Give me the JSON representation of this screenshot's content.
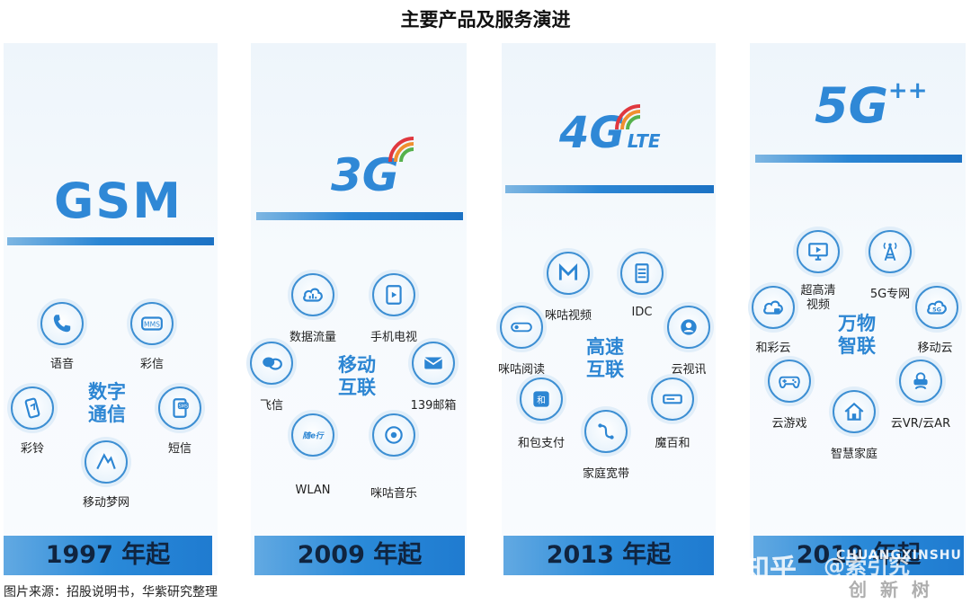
{
  "title": "主要产品及服务演进",
  "source_note": "图片来源：招股说明书，华紫研究整理",
  "watermark": {
    "brand": "知乎",
    "author": "@索引究",
    "mark_line1": "CHUANGXINSHU",
    "mark_line2": "创 新 树"
  },
  "colors": {
    "accent": "#2d86d3",
    "bar": "#1f7bd0",
    "panel": "#eef5fb"
  },
  "generations": [
    {
      "name": "GSM",
      "year": "1997 年起",
      "center_line1": "数字",
      "center_line2": "通信",
      "services": [
        {
          "label": "语音",
          "icon": "phone-icon"
        },
        {
          "label": "彩信",
          "icon": "mms-icon"
        },
        {
          "label": "彩铃",
          "icon": "ringtone-phone-icon"
        },
        {
          "label": "短信",
          "icon": "sms-icon"
        },
        {
          "label": "移动梦网",
          "icon": "monternet-icon"
        }
      ]
    },
    {
      "name": "3G",
      "year": "2009 年起",
      "center_line1": "移动",
      "center_line2": "互联",
      "services": [
        {
          "label": "数据流量",
          "icon": "cloud-data-icon"
        },
        {
          "label": "手机电视",
          "icon": "mobile-tv-icon"
        },
        {
          "label": "飞信",
          "icon": "fetion-icon"
        },
        {
          "label": "139邮箱",
          "icon": "mail-icon"
        },
        {
          "label": "WLAN",
          "icon": "wlan-icon"
        },
        {
          "label": "咪咕音乐",
          "icon": "music-icon"
        }
      ]
    },
    {
      "name": "4G",
      "suffix": "LTE",
      "year": "2013 年起",
      "center_line1": "高速",
      "center_line2": "互联",
      "services": [
        {
          "label": "咪咕视频",
          "icon": "migu-video-icon"
        },
        {
          "label": "IDC",
          "icon": "server-icon"
        },
        {
          "label": "咪咕阅读",
          "icon": "migu-read-icon"
        },
        {
          "label": "云视讯",
          "icon": "video-conference-icon"
        },
        {
          "label": "和包支付",
          "icon": "payment-icon"
        },
        {
          "label": "魔百和",
          "icon": "settop-box-icon"
        },
        {
          "label": "家庭宽带",
          "icon": "broadband-icon"
        }
      ]
    },
    {
      "name": "5G",
      "suffix": "++",
      "year": "2019 年起",
      "center_line1": "万物",
      "center_line2": "智联",
      "services": [
        {
          "label": "超高清\n视频",
          "icon": "uhd-video-icon"
        },
        {
          "label": "5G专网",
          "icon": "tower-icon"
        },
        {
          "label": "和彩云",
          "icon": "cloud-storage-icon"
        },
        {
          "label": "移动云",
          "icon": "mobile-cloud-icon"
        },
        {
          "label": "云游戏",
          "icon": "gamepad-icon"
        },
        {
          "label": "云VR/云AR",
          "icon": "vr-headset-icon"
        },
        {
          "label": "智慧家庭",
          "icon": "smart-home-icon"
        }
      ]
    }
  ]
}
